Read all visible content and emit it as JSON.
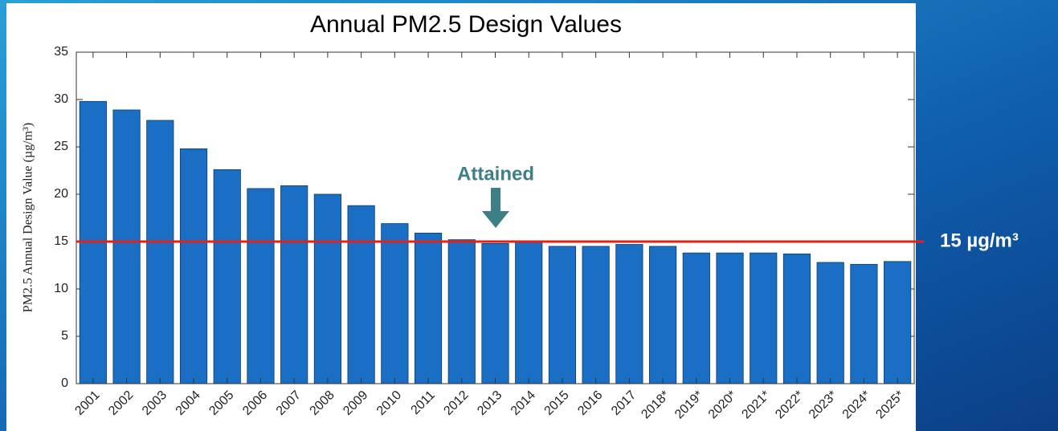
{
  "chart_data": {
    "type": "bar",
    "title": "Annual PM2.5 Design Values",
    "y_label": "PM2.5 Annual Design Value (µg/m³)",
    "categories": [
      "2001",
      "2002",
      "2003",
      "2004",
      "2005",
      "2006",
      "2007",
      "2008",
      "2009",
      "2010",
      "2011",
      "2012",
      "2013",
      "2014",
      "2015",
      "2016",
      "2017",
      "2018*",
      "2019*",
      "2020*",
      "2021*",
      "2022*",
      "2023*",
      "2024*",
      "2025*"
    ],
    "values": [
      29.8,
      28.9,
      27.8,
      24.8,
      22.6,
      20.6,
      20.9,
      20.0,
      18.8,
      16.9,
      15.9,
      15.2,
      14.8,
      14.9,
      14.5,
      14.5,
      14.7,
      14.5,
      13.8,
      13.8,
      13.8,
      13.7,
      12.8,
      12.6,
      12.9
    ],
    "color": "#1a6fc4",
    "ylim": [
      0,
      35
    ],
    "yticks": [
      0,
      5,
      10,
      15,
      20,
      25,
      30,
      35
    ],
    "reference_line": {
      "value": 15,
      "label": "15 µg/m³",
      "color": "#e3201b"
    },
    "annotation": "Attained"
  }
}
